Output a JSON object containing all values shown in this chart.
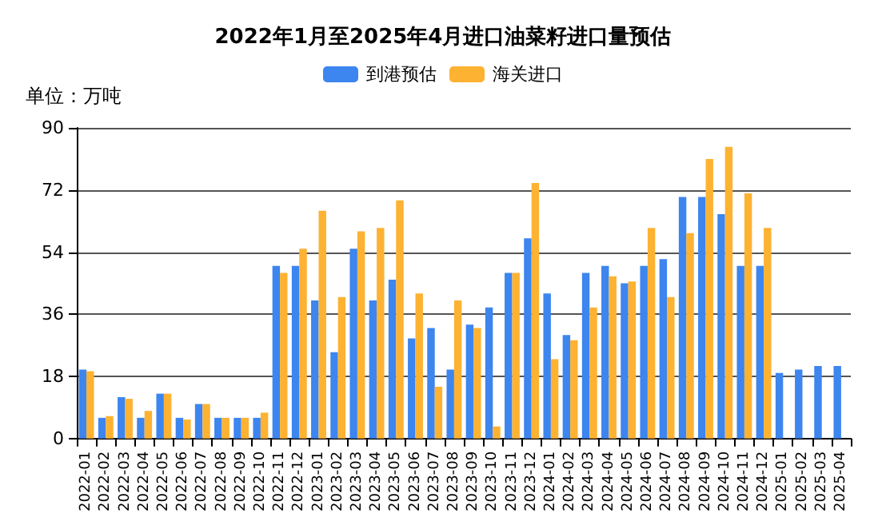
{
  "chart_data": {
    "type": "bar",
    "title": "2022年1月至2025年4月进口油菜籽进口量预估",
    "annotations": [
      "单位：万吨"
    ],
    "categories": [
      "2022-01",
      "2022-02",
      "2022-03",
      "2022-04",
      "2022-05",
      "2022-06",
      "2022-07",
      "2022-08",
      "2022-09",
      "2022-10",
      "2022-11",
      "2022-12",
      "2023-01",
      "2023-02",
      "2023-03",
      "2023-04",
      "2023-05",
      "2023-06",
      "2023-07",
      "2023-08",
      "2023-09",
      "2023-10",
      "2023-11",
      "2023-12",
      "2024-01",
      "2024-02",
      "2024-03",
      "2024-04",
      "2024-05",
      "2024-06",
      "2024-07",
      "2024-08",
      "2024-09",
      "2024-10",
      "2024-11",
      "2024-12",
      "2025-01",
      "2025-02",
      "2025-03",
      "2025-04"
    ],
    "series": [
      {
        "name": "到港预估",
        "color": "#3d85ef",
        "values": [
          20,
          6,
          12,
          6,
          13,
          6,
          10,
          6,
          6,
          6,
          50,
          50,
          40,
          25,
          55,
          40,
          46,
          29,
          32,
          20,
          33,
          38,
          48,
          58,
          42,
          30,
          48,
          50,
          45,
          50,
          52,
          70,
          70,
          65,
          50,
          50,
          19,
          20,
          21,
          21
        ]
      },
      {
        "name": "海关进口",
        "color": "#fdb232",
        "values": [
          19.5,
          6.5,
          11.5,
          8,
          13,
          5.5,
          10,
          6,
          6,
          7.5,
          48,
          55,
          66,
          41,
          60,
          61,
          69,
          42,
          15,
          40,
          32,
          3.5,
          48,
          74,
          23,
          28.5,
          38,
          47,
          45.5,
          61,
          41,
          59.5,
          81,
          84.5,
          71,
          61,
          null,
          null,
          null,
          null
        ]
      }
    ],
    "ylim": [
      0,
      90
    ],
    "yticks": [
      0,
      18,
      36,
      54,
      72,
      90
    ],
    "grid": "y",
    "legend": "top"
  }
}
